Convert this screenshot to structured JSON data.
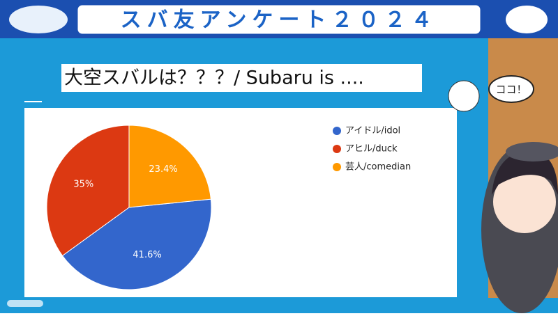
{
  "banner": {
    "title": "スバ友アンケート２０２４"
  },
  "speech_bubble": "ココ！",
  "chart_data": {
    "type": "pie",
    "title": "大空スバルは？？？/ Subaru is ....",
    "categories": [
      "アイドル/idol",
      "アヒル/duck",
      "芸人/comedian"
    ],
    "values": [
      41.6,
      35,
      23.4
    ],
    "value_labels": [
      "41.6%",
      "35%",
      "23.4%"
    ],
    "colors": [
      "#3366cc",
      "#dc3912",
      "#ff9900"
    ],
    "legend": "right"
  }
}
